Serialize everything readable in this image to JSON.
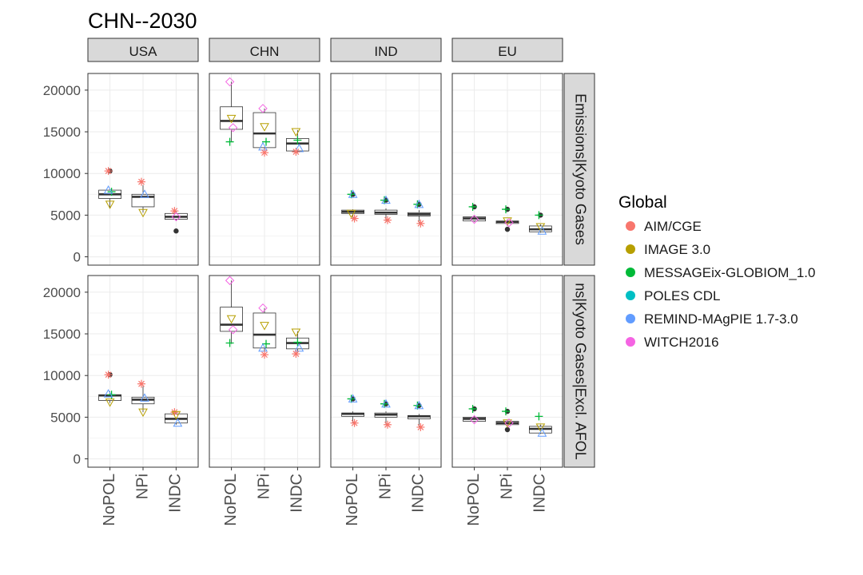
{
  "chart_data": {
    "type": "boxplot",
    "title": "CHN--2030",
    "columns": [
      "USA",
      "CHN",
      "IND",
      "EU"
    ],
    "rows": [
      "Emissions|Kyoto Gases",
      "Emissions|Kyoto Gases|Excl. AFOLU"
    ],
    "row_strip_labels": [
      "Emissions|Kyoto Gases",
      "ns|Kyoto Gases|Excl. AFOL"
    ],
    "categories": [
      "NoPOL",
      "NPi",
      "INDC"
    ],
    "y_ticks": [
      0,
      5000,
      10000,
      15000,
      20000
    ],
    "ylim": [
      -1000,
      22000
    ],
    "grid": true,
    "legend": {
      "title": "Global",
      "position": "right",
      "entries": [
        {
          "name": "AIM/CGE",
          "color": "#F8766D",
          "shape": "asterisk"
        },
        {
          "name": "IMAGE 3.0",
          "color": "#B79F00",
          "shape": "triangle-down"
        },
        {
          "name": "MESSAGEix-GLOBIOM_1.0",
          "color": "#00BA38",
          "shape": "plus"
        },
        {
          "name": "POLES CDL",
          "color": "#00BFC4",
          "shape": "circle"
        },
        {
          "name": "REMIND-MAgPIE 1.7-3.0",
          "color": "#619CFF",
          "shape": "triangle-up"
        },
        {
          "name": "WITCH2016",
          "color": "#F564E3",
          "shape": "diamond"
        }
      ]
    },
    "panels": [
      {
        "row": 0,
        "col": 0,
        "groups": [
          {
            "category": "NoPOL",
            "box": {
              "q1": 7000,
              "median": 7500,
              "q3": 8000,
              "min": 5900,
              "max": 8100
            },
            "points": [
              {
                "model": "AIM/CGE",
                "value": 10300
              },
              {
                "model": "IMAGE 3.0",
                "value": 6300
              },
              {
                "model": "MESSAGEix-GLOBIOM_1.0",
                "value": 7800
              },
              {
                "model": "REMIND-MAgPIE 1.7-3.0",
                "value": 8000
              }
            ],
            "outliers": [
              10300
            ]
          },
          {
            "category": "NPi",
            "box": {
              "q1": 6000,
              "median": 7200,
              "q3": 7500,
              "min": 5300,
              "max": 8600
            },
            "points": [
              {
                "model": "AIM/CGE",
                "value": 9000
              },
              {
                "model": "IMAGE 3.0",
                "value": 5300
              },
              {
                "model": "REMIND-MAgPIE 1.7-3.0",
                "value": 7500
              }
            ]
          },
          {
            "category": "INDC",
            "box": {
              "q1": 4500,
              "median": 4800,
              "q3": 5200,
              "min": 4300,
              "max": 5500
            },
            "points": [
              {
                "model": "AIM/CGE",
                "value": 5500
              },
              {
                "model": "WITCH2016",
                "value": 4800
              }
            ],
            "outliers": [
              3100
            ]
          }
        ]
      },
      {
        "row": 0,
        "col": 1,
        "groups": [
          {
            "category": "NoPOL",
            "box": {
              "q1": 15300,
              "median": 16300,
              "q3": 18000,
              "min": 13800,
              "max": 21000
            },
            "points": [
              {
                "model": "WITCH2016",
                "value": 21000
              },
              {
                "model": "IMAGE 3.0",
                "value": 16600
              },
              {
                "model": "WITCH2016",
                "value": 15500
              },
              {
                "model": "MESSAGEix-GLOBIOM_1.0",
                "value": 13800
              }
            ]
          },
          {
            "category": "NPi",
            "box": {
              "q1": 13100,
              "median": 14800,
              "q3": 17300,
              "min": 12500,
              "max": 17800
            },
            "points": [
              {
                "model": "WITCH2016",
                "value": 17800
              },
              {
                "model": "IMAGE 3.0",
                "value": 15600
              },
              {
                "model": "MESSAGEix-GLOBIOM_1.0",
                "value": 13800
              },
              {
                "model": "REMIND-MAgPIE 1.7-3.0",
                "value": 13200
              },
              {
                "model": "AIM/CGE",
                "value": 12500
              }
            ]
          },
          {
            "category": "INDC",
            "box": {
              "q1": 12700,
              "median": 13600,
              "q3": 14200,
              "min": 12500,
              "max": 15200
            },
            "points": [
              {
                "model": "IMAGE 3.0",
                "value": 15000
              },
              {
                "model": "MESSAGEix-GLOBIOM_1.0",
                "value": 14000
              },
              {
                "model": "REMIND-MAgPIE 1.7-3.0",
                "value": 13000
              },
              {
                "model": "AIM/CGE",
                "value": 12600
              }
            ]
          }
        ]
      },
      {
        "row": 0,
        "col": 2,
        "groups": [
          {
            "category": "NoPOL",
            "box": {
              "q1": 5200,
              "median": 5400,
              "q3": 5600,
              "min": 4500,
              "max": 5700
            },
            "points": [
              {
                "model": "MESSAGEix-GLOBIOM_1.0",
                "value": 7500
              },
              {
                "model": "REMIND-MAgPIE 1.7-3.0",
                "value": 7500
              },
              {
                "model": "AIM/CGE",
                "value": 4600
              },
              {
                "model": "IMAGE 3.0",
                "value": 5200
              }
            ],
            "outliers": [
              7500
            ]
          },
          {
            "category": "NPi",
            "box": {
              "q1": 5100,
              "median": 5300,
              "q3": 5600,
              "min": 4300,
              "max": 5800
            },
            "points": [
              {
                "model": "MESSAGEix-GLOBIOM_1.0",
                "value": 6800
              },
              {
                "model": "REMIND-MAgPIE 1.7-3.0",
                "value": 6800
              },
              {
                "model": "AIM/CGE",
                "value": 4400
              }
            ],
            "outliers": [
              6800
            ]
          },
          {
            "category": "INDC",
            "box": {
              "q1": 4900,
              "median": 5100,
              "q3": 5300,
              "min": 4000,
              "max": 5600
            },
            "points": [
              {
                "model": "MESSAGEix-GLOBIOM_1.0",
                "value": 6300
              },
              {
                "model": "REMIND-MAgPIE 1.7-3.0",
                "value": 6300
              },
              {
                "model": "AIM/CGE",
                "value": 4000
              }
            ],
            "outliers": [
              6300
            ]
          }
        ]
      },
      {
        "row": 0,
        "col": 3,
        "groups": [
          {
            "category": "NoPOL",
            "box": {
              "q1": 4300,
              "median": 4600,
              "q3": 4800,
              "min": 4200,
              "max": 5000
            },
            "points": [
              {
                "model": "MESSAGEix-GLOBIOM_1.0",
                "value": 6000
              },
              {
                "model": "WITCH2016",
                "value": 4500
              }
            ],
            "outliers": [
              6000
            ]
          },
          {
            "category": "NPi",
            "box": {
              "q1": 4000,
              "median": 4200,
              "q3": 4300,
              "min": 3700,
              "max": 4500
            },
            "points": [
              {
                "model": "MESSAGEix-GLOBIOM_1.0",
                "value": 5700
              },
              {
                "model": "IMAGE 3.0",
                "value": 4300
              },
              {
                "model": "WITCH2016",
                "value": 4100
              }
            ],
            "outliers": [
              5700,
              3300
            ]
          },
          {
            "category": "INDC",
            "box": {
              "q1": 3000,
              "median": 3300,
              "q3": 3700,
              "min": 2900,
              "max": 3900
            },
            "points": [
              {
                "model": "MESSAGEix-GLOBIOM_1.0",
                "value": 5000
              },
              {
                "model": "IMAGE 3.0",
                "value": 3600
              },
              {
                "model": "REMIND-MAgPIE 1.7-3.0",
                "value": 3100
              }
            ],
            "outliers": [
              5000
            ]
          }
        ]
      },
      {
        "row": 1,
        "col": 0,
        "groups": [
          {
            "category": "NoPOL",
            "box": {
              "q1": 7000,
              "median": 7600,
              "q3": 7700,
              "min": 6700,
              "max": 8100
            },
            "points": [
              {
                "model": "AIM/CGE",
                "value": 10100
              },
              {
                "model": "IMAGE 3.0",
                "value": 6800
              },
              {
                "model": "MESSAGEix-GLOBIOM_1.0",
                "value": 7700
              },
              {
                "model": "REMIND-MAgPIE 1.7-3.0",
                "value": 7800
              }
            ],
            "outliers": [
              10100
            ]
          },
          {
            "category": "NPi",
            "box": {
              "q1": 6600,
              "median": 7100,
              "q3": 7400,
              "min": 5600,
              "max": 8700
            },
            "points": [
              {
                "model": "AIM/CGE",
                "value": 9000
              },
              {
                "model": "IMAGE 3.0",
                "value": 5600
              },
              {
                "model": "REMIND-MAgPIE 1.7-3.0",
                "value": 7300
              }
            ]
          },
          {
            "category": "INDC",
            "box": {
              "q1": 4300,
              "median": 4800,
              "q3": 5400,
              "min": 4100,
              "max": 5600
            },
            "points": [
              {
                "model": "AIM/CGE",
                "value": 5600
              },
              {
                "model": "IMAGE 3.0",
                "value": 5300
              },
              {
                "model": "REMIND-MAgPIE 1.7-3.0",
                "value": 4300
              }
            ]
          }
        ]
      },
      {
        "row": 1,
        "col": 1,
        "groups": [
          {
            "category": "NoPOL",
            "box": {
              "q1": 15300,
              "median": 16100,
              "q3": 18200,
              "min": 13800,
              "max": 21400
            },
            "points": [
              {
                "model": "WITCH2016",
                "value": 21400
              },
              {
                "model": "IMAGE 3.0",
                "value": 16800
              },
              {
                "model": "WITCH2016",
                "value": 15500
              },
              {
                "model": "MESSAGEix-GLOBIOM_1.0",
                "value": 13900
              }
            ]
          },
          {
            "category": "NPi",
            "box": {
              "q1": 13300,
              "median": 14900,
              "q3": 17500,
              "min": 12600,
              "max": 18100
            },
            "points": [
              {
                "model": "WITCH2016",
                "value": 18100
              },
              {
                "model": "IMAGE 3.0",
                "value": 16000
              },
              {
                "model": "MESSAGEix-GLOBIOM_1.0",
                "value": 13800
              },
              {
                "model": "REMIND-MAgPIE 1.7-3.0",
                "value": 13300
              },
              {
                "model": "AIM/CGE",
                "value": 12500
              }
            ]
          },
          {
            "category": "INDC",
            "box": {
              "q1": 13200,
              "median": 13900,
              "q3": 14500,
              "min": 12700,
              "max": 15300
            },
            "points": [
              {
                "model": "IMAGE 3.0",
                "value": 15200
              },
              {
                "model": "MESSAGEix-GLOBIOM_1.0",
                "value": 14000
              },
              {
                "model": "REMIND-MAgPIE 1.7-3.0",
                "value": 13300
              },
              {
                "model": "AIM/CGE",
                "value": 12600
              }
            ]
          }
        ]
      },
      {
        "row": 1,
        "col": 2,
        "groups": [
          {
            "category": "NoPOL",
            "box": {
              "q1": 5100,
              "median": 5400,
              "q3": 5500,
              "min": 4300,
              "max": 5700
            },
            "points": [
              {
                "model": "MESSAGEix-GLOBIOM_1.0",
                "value": 7200
              },
              {
                "model": "REMIND-MAgPIE 1.7-3.0",
                "value": 7200
              },
              {
                "model": "AIM/CGE",
                "value": 4300
              }
            ],
            "outliers": [
              7200
            ]
          },
          {
            "category": "NPi",
            "box": {
              "q1": 5000,
              "median": 5300,
              "q3": 5500,
              "min": 4100,
              "max": 5700
            },
            "points": [
              {
                "model": "MESSAGEix-GLOBIOM_1.0",
                "value": 6600
              },
              {
                "model": "REMIND-MAgPIE 1.7-3.0",
                "value": 6600
              },
              {
                "model": "AIM/CGE",
                "value": 4100
              }
            ],
            "outliers": [
              6600
            ]
          },
          {
            "category": "INDC",
            "box": {
              "q1": 4800,
              "median": 5100,
              "q3": 5200,
              "min": 3800,
              "max": 5400
            },
            "points": [
              {
                "model": "MESSAGEix-GLOBIOM_1.0",
                "value": 6400
              },
              {
                "model": "REMIND-MAgPIE 1.7-3.0",
                "value": 6400
              },
              {
                "model": "AIM/CGE",
                "value": 3800
              }
            ],
            "outliers": [
              6400
            ]
          }
        ]
      },
      {
        "row": 1,
        "col": 3,
        "groups": [
          {
            "category": "NoPOL",
            "box": {
              "q1": 4500,
              "median": 4800,
              "q3": 5000,
              "min": 4400,
              "max": 5200
            },
            "points": [
              {
                "model": "MESSAGEix-GLOBIOM_1.0",
                "value": 6000
              },
              {
                "model": "WITCH2016",
                "value": 4700
              }
            ],
            "outliers": [
              6000
            ]
          },
          {
            "category": "NPi",
            "box": {
              "q1": 4100,
              "median": 4300,
              "q3": 4500,
              "min": 3800,
              "max": 4700
            },
            "points": [
              {
                "model": "MESSAGEix-GLOBIOM_1.0",
                "value": 5700
              },
              {
                "model": "IMAGE 3.0",
                "value": 4300
              },
              {
                "model": "WITCH2016",
                "value": 4300
              }
            ],
            "outliers": [
              5700,
              3500
            ]
          },
          {
            "category": "INDC",
            "box": {
              "q1": 3100,
              "median": 3600,
              "q3": 3900,
              "min": 3000,
              "max": 4100
            },
            "points": [
              {
                "model": "MESSAGEix-GLOBIOM_1.0",
                "value": 5100
              },
              {
                "model": "IMAGE 3.0",
                "value": 3800
              },
              {
                "model": "REMIND-MAgPIE 1.7-3.0",
                "value": 3100
              }
            ]
          }
        ]
      }
    ]
  }
}
